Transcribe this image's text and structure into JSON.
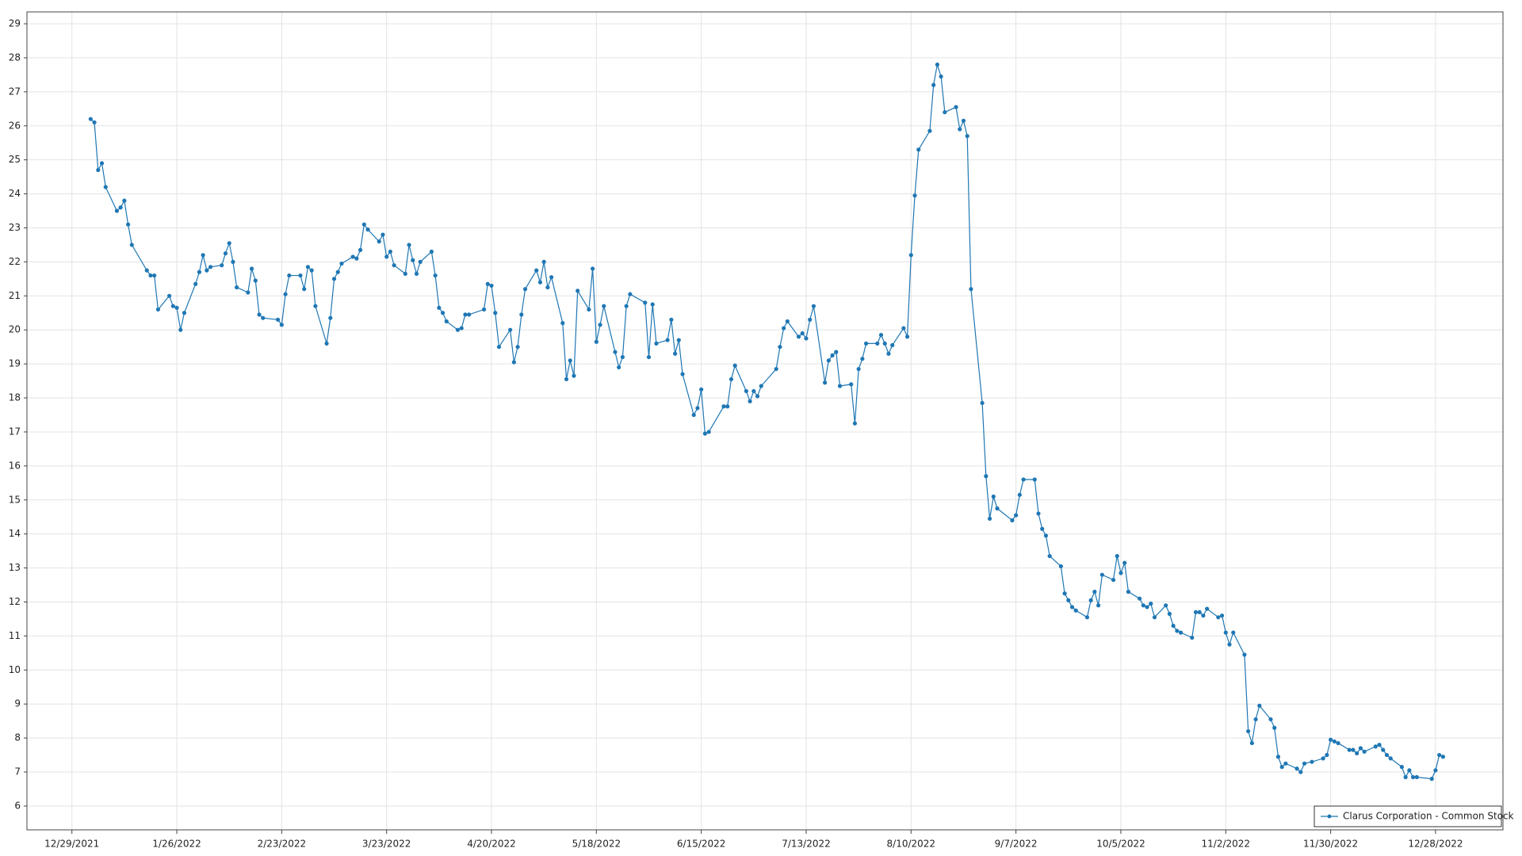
{
  "chart_data": {
    "type": "line",
    "x": [
      "1/3/2022",
      "1/4/2022",
      "1/5/2022",
      "1/6/2022",
      "1/7/2022",
      "1/10/2022",
      "1/11/2022",
      "1/12/2022",
      "1/13/2022",
      "1/14/2022",
      "1/18/2022",
      "1/19/2022",
      "1/20/2022",
      "1/21/2022",
      "1/24/2022",
      "1/25/2022",
      "1/26/2022",
      "1/27/2022",
      "1/28/2022",
      "1/31/2022",
      "2/1/2022",
      "2/2/2022",
      "2/3/2022",
      "2/4/2022",
      "2/7/2022",
      "2/8/2022",
      "2/9/2022",
      "2/10/2022",
      "2/11/2022",
      "2/14/2022",
      "2/15/2022",
      "2/16/2022",
      "2/17/2022",
      "2/18/2022",
      "2/22/2022",
      "2/23/2022",
      "2/24/2022",
      "2/25/2022",
      "2/28/2022",
      "3/1/2022",
      "3/2/2022",
      "3/3/2022",
      "3/4/2022",
      "3/7/2022",
      "3/8/2022",
      "3/9/2022",
      "3/10/2022",
      "3/11/2022",
      "3/14/2022",
      "3/15/2022",
      "3/16/2022",
      "3/17/2022",
      "3/18/2022",
      "3/21/2022",
      "3/22/2022",
      "3/23/2022",
      "3/24/2022",
      "3/25/2022",
      "3/28/2022",
      "3/29/2022",
      "3/30/2022",
      "3/31/2022",
      "4/1/2022",
      "4/4/2022",
      "4/5/2022",
      "4/6/2022",
      "4/7/2022",
      "4/8/2022",
      "4/11/2022",
      "4/12/2022",
      "4/13/2022",
      "4/14/2022",
      "4/18/2022",
      "4/19/2022",
      "4/20/2022",
      "4/21/2022",
      "4/22/2022",
      "4/25/2022",
      "4/26/2022",
      "4/27/2022",
      "4/28/2022",
      "4/29/2022",
      "5/2/2022",
      "5/3/2022",
      "5/4/2022",
      "5/5/2022",
      "5/6/2022",
      "5/9/2022",
      "5/10/2022",
      "5/11/2022",
      "5/12/2022",
      "5/13/2022",
      "5/16/2022",
      "5/17/2022",
      "5/18/2022",
      "5/19/2022",
      "5/20/2022",
      "5/23/2022",
      "5/24/2022",
      "5/25/2022",
      "5/26/2022",
      "5/27/2022",
      "5/31/2022",
      "6/1/2022",
      "6/2/2022",
      "6/3/2022",
      "6/6/2022",
      "6/7/2022",
      "6/8/2022",
      "6/9/2022",
      "6/10/2022",
      "6/13/2022",
      "6/14/2022",
      "6/15/2022",
      "6/16/2022",
      "6/17/2022",
      "6/21/2022",
      "6/22/2022",
      "6/23/2022",
      "6/24/2022",
      "6/27/2022",
      "6/28/2022",
      "6/29/2022",
      "6/30/2022",
      "7/1/2022",
      "7/5/2022",
      "7/6/2022",
      "7/7/2022",
      "7/8/2022",
      "7/11/2022",
      "7/12/2022",
      "7/13/2022",
      "7/14/2022",
      "7/15/2022",
      "7/18/2022",
      "7/19/2022",
      "7/20/2022",
      "7/21/2022",
      "7/22/2022",
      "7/25/2022",
      "7/26/2022",
      "7/27/2022",
      "7/28/2022",
      "7/29/2022",
      "8/1/2022",
      "8/2/2022",
      "8/3/2022",
      "8/4/2022",
      "8/5/2022",
      "8/8/2022",
      "8/9/2022",
      "8/10/2022",
      "8/11/2022",
      "8/12/2022",
      "8/15/2022",
      "8/16/2022",
      "8/17/2022",
      "8/18/2022",
      "8/19/2022",
      "8/22/2022",
      "8/23/2022",
      "8/24/2022",
      "8/25/2022",
      "8/26/2022",
      "8/29/2022",
      "8/30/2022",
      "8/31/2022",
      "9/1/2022",
      "9/2/2022",
      "9/6/2022",
      "9/7/2022",
      "9/8/2022",
      "9/9/2022",
      "9/12/2022",
      "9/13/2022",
      "9/14/2022",
      "9/15/2022",
      "9/16/2022",
      "9/19/2022",
      "9/20/2022",
      "9/21/2022",
      "9/22/2022",
      "9/23/2022",
      "9/26/2022",
      "9/27/2022",
      "9/28/2022",
      "9/29/2022",
      "9/30/2022",
      "10/3/2022",
      "10/4/2022",
      "10/5/2022",
      "10/6/2022",
      "10/7/2022",
      "10/10/2022",
      "10/11/2022",
      "10/12/2022",
      "10/13/2022",
      "10/14/2022",
      "10/17/2022",
      "10/18/2022",
      "10/19/2022",
      "10/20/2022",
      "10/21/2022",
      "10/24/2022",
      "10/25/2022",
      "10/26/2022",
      "10/27/2022",
      "10/28/2022",
      "10/31/2022",
      "11/1/2022",
      "11/2/2022",
      "11/3/2022",
      "11/4/2022",
      "11/7/2022",
      "11/8/2022",
      "11/9/2022",
      "11/10/2022",
      "11/11/2022",
      "11/14/2022",
      "11/15/2022",
      "11/16/2022",
      "11/17/2022",
      "11/18/2022",
      "11/21/2022",
      "11/22/2022",
      "11/23/2022",
      "11/25/2022",
      "11/28/2022",
      "11/29/2022",
      "11/30/2022",
      "12/1/2022",
      "12/2/2022",
      "12/5/2022",
      "12/6/2022",
      "12/7/2022",
      "12/8/2022",
      "12/9/2022",
      "12/12/2022",
      "12/13/2022",
      "12/14/2022",
      "12/15/2022",
      "12/16/2022",
      "12/19/2022",
      "12/20/2022",
      "12/21/2022",
      "12/22/2022",
      "12/23/2022",
      "12/27/2022",
      "12/28/2022",
      "12/29/2022",
      "12/30/2022"
    ],
    "series": [
      {
        "name": "Clarus Corporation - Common Stock",
        "color": "#1f77b4",
        "values": [
          26.2,
          26.1,
          24.7,
          24.9,
          24.2,
          23.5,
          23.6,
          23.8,
          23.1,
          22.5,
          21.75,
          21.6,
          21.6,
          20.6,
          21.0,
          20.7,
          20.65,
          20.0,
          20.5,
          21.35,
          21.7,
          22.2,
          21.75,
          21.85,
          21.9,
          22.25,
          22.55,
          22.0,
          21.25,
          21.1,
          21.8,
          21.45,
          20.45,
          20.35,
          20.3,
          20.15,
          21.05,
          21.6,
          21.6,
          21.2,
          21.85,
          21.75,
          20.7,
          19.6,
          20.35,
          21.5,
          21.7,
          21.95,
          22.15,
          22.1,
          22.35,
          23.1,
          22.95,
          22.6,
          22.8,
          22.15,
          22.3,
          21.9,
          21.65,
          22.5,
          22.05,
          21.65,
          22.0,
          22.3,
          21.6,
          20.65,
          20.5,
          20.25,
          20.0,
          20.05,
          20.45,
          20.45,
          20.6,
          21.35,
          21.3,
          20.5,
          19.5,
          20.0,
          19.05,
          19.5,
          20.45,
          21.2,
          21.75,
          21.4,
          22.0,
          21.25,
          21.55,
          20.2,
          18.55,
          19.1,
          18.65,
          21.15,
          20.6,
          21.8,
          19.65,
          20.15,
          20.7,
          19.35,
          18.9,
          19.2,
          20.7,
          21.05,
          20.8,
          19.2,
          20.75,
          19.6,
          19.7,
          20.3,
          19.3,
          19.7,
          18.7,
          17.5,
          17.7,
          18.25,
          16.95,
          17.0,
          17.75,
          17.75,
          18.55,
          18.95,
          18.2,
          17.9,
          18.2,
          18.05,
          18.35,
          18.85,
          19.5,
          20.05,
          20.25,
          19.8,
          19.9,
          19.75,
          20.3,
          20.7,
          18.45,
          19.1,
          19.25,
          19.35,
          18.35,
          18.4,
          17.25,
          18.85,
          19.15,
          19.6,
          19.6,
          19.85,
          19.6,
          19.3,
          19.55,
          20.05,
          19.8,
          22.2,
          23.95,
          25.3,
          25.85,
          27.2,
          27.8,
          27.45,
          26.4,
          26.55,
          25.9,
          26.15,
          25.7,
          21.2,
          17.85,
          15.7,
          14.45,
          15.1,
          14.75,
          14.4,
          14.55,
          15.15,
          15.6,
          15.6,
          14.6,
          14.15,
          13.95,
          13.35,
          13.05,
          12.25,
          12.05,
          11.85,
          11.75,
          11.55,
          12.05,
          12.3,
          11.9,
          12.8,
          12.65,
          13.35,
          12.85,
          13.15,
          12.3,
          12.1,
          11.9,
          11.85,
          11.95,
          11.55,
          11.9,
          11.65,
          11.3,
          11.15,
          11.1,
          10.95,
          11.7,
          11.7,
          11.6,
          11.8,
          11.55,
          11.6,
          11.1,
          10.75,
          11.1,
          10.45,
          8.2,
          7.85,
          8.55,
          8.95,
          8.55,
          8.3,
          7.45,
          7.15,
          7.25,
          7.1,
          7.0,
          7.25,
          7.3,
          7.4,
          7.5,
          7.95,
          7.9,
          7.85,
          7.65,
          7.65,
          7.55,
          7.7,
          7.6,
          7.75,
          7.8,
          7.65,
          7.5,
          7.4,
          7.15,
          6.85,
          7.05,
          6.85,
          6.85,
          6.8,
          7.05,
          7.5,
          7.45
        ]
      }
    ],
    "xlim": [
      "12/17/2021",
      "1/15/2023"
    ],
    "xticks": [
      "12/29/2021",
      "1/26/2022",
      "2/23/2022",
      "3/23/2022",
      "4/20/2022",
      "5/18/2022",
      "6/15/2022",
      "7/13/2022",
      "8/10/2022",
      "9/7/2022",
      "10/5/2022",
      "11/2/2022",
      "11/30/2022",
      "12/28/2022"
    ],
    "ylim": [
      5.3,
      29.35
    ],
    "yticks": [
      6,
      7,
      8,
      9,
      10,
      11,
      12,
      13,
      14,
      15,
      16,
      17,
      18,
      19,
      20,
      21,
      22,
      23,
      24,
      25,
      26,
      27,
      28,
      29
    ],
    "grid": true,
    "markers": true,
    "legend": "lower right"
  }
}
